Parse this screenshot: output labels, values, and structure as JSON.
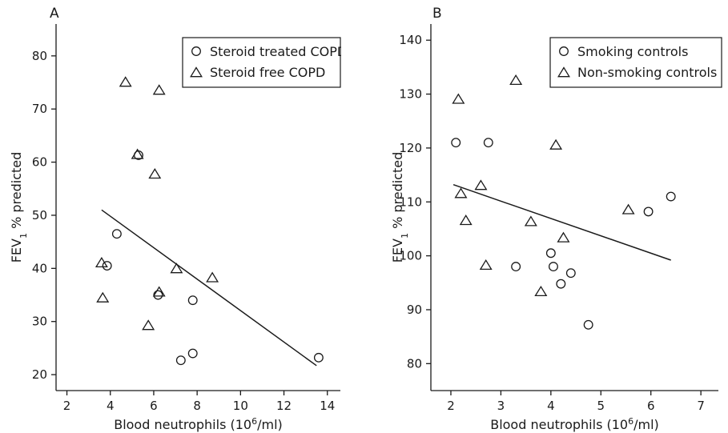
{
  "chart_data": [
    {
      "type": "scatter",
      "panel_label": "A",
      "xlabel": "Blood neutrophils (10",
      "xlabel_sup": "6",
      "xlabel_suffix": "/ml)",
      "ylabel": "FEV",
      "ylabel_sub": "1",
      "ylabel_suffix": " % predicted",
      "xlim": [
        1.5,
        14.6
      ],
      "ylim": [
        17,
        86
      ],
      "xticks": [
        2,
        4,
        6,
        8,
        10,
        12,
        14
      ],
      "yticks": [
        20,
        30,
        40,
        50,
        60,
        70,
        80
      ],
      "grid": false,
      "legend_position": "top-right",
      "series": [
        {
          "name": "Steroid treated COPD",
          "marker": "circle",
          "points": [
            {
              "x": 4.3,
              "y": 46.5
            },
            {
              "x": 3.85,
              "y": 40.5
            },
            {
              "x": 5.3,
              "y": 61.3
            },
            {
              "x": 6.2,
              "y": 35
            },
            {
              "x": 7.8,
              "y": 34
            },
            {
              "x": 7.8,
              "y": 24
            },
            {
              "x": 7.25,
              "y": 22.7
            },
            {
              "x": 13.6,
              "y": 23.2
            }
          ]
        },
        {
          "name": "Steroid free COPD",
          "marker": "triangle",
          "points": [
            {
              "x": 4.7,
              "y": 75
            },
            {
              "x": 6.25,
              "y": 73.5
            },
            {
              "x": 5.25,
              "y": 61.4
            },
            {
              "x": 6.05,
              "y": 57.7
            },
            {
              "x": 3.6,
              "y": 41
            },
            {
              "x": 3.65,
              "y": 34.4
            },
            {
              "x": 5.75,
              "y": 29.2
            },
            {
              "x": 6.25,
              "y": 35.5
            },
            {
              "x": 7.05,
              "y": 39.9
            },
            {
              "x": 8.7,
              "y": 38.2
            }
          ]
        }
      ],
      "regression_line": [
        {
          "x": 3.6,
          "y": 51
        },
        {
          "x": 13.5,
          "y": 21.7
        }
      ]
    },
    {
      "type": "scatter",
      "panel_label": "B",
      "xlabel": "Blood neutrophils (10",
      "xlabel_sup": "6",
      "xlabel_suffix": "/ml)",
      "ylabel": "FEV",
      "ylabel_sub": "1",
      "ylabel_suffix": " % predicted",
      "xlim": [
        1.6,
        7.35
      ],
      "ylim": [
        75,
        143
      ],
      "xticks": [
        2,
        3,
        4,
        5,
        6,
        7
      ],
      "yticks": [
        80,
        90,
        100,
        110,
        120,
        130,
        140
      ],
      "grid": false,
      "legend_position": "top-right",
      "series": [
        {
          "name": "Smoking controls",
          "marker": "circle",
          "points": [
            {
              "x": 2.1,
              "y": 121
            },
            {
              "x": 2.75,
              "y": 121
            },
            {
              "x": 3.3,
              "y": 98
            },
            {
              "x": 4.0,
              "y": 100.5
            },
            {
              "x": 4.05,
              "y": 98
            },
            {
              "x": 4.2,
              "y": 94.8
            },
            {
              "x": 4.4,
              "y": 96.8
            },
            {
              "x": 4.75,
              "y": 87.2
            },
            {
              "x": 5.95,
              "y": 108.2
            },
            {
              "x": 6.4,
              "y": 111
            }
          ]
        },
        {
          "name": "Non-smoking controls",
          "marker": "triangle",
          "points": [
            {
              "x": 2.15,
              "y": 129
            },
            {
              "x": 2.2,
              "y": 111.5
            },
            {
              "x": 2.3,
              "y": 106.5
            },
            {
              "x": 2.6,
              "y": 113
            },
            {
              "x": 3.3,
              "y": 132.5
            },
            {
              "x": 4.1,
              "y": 120.5
            },
            {
              "x": 3.6,
              "y": 106.3
            },
            {
              "x": 4.25,
              "y": 103.3
            },
            {
              "x": 2.7,
              "y": 98.2
            },
            {
              "x": 3.8,
              "y": 93.3
            },
            {
              "x": 5.55,
              "y": 108.5
            }
          ]
        }
      ],
      "regression_line": [
        {
          "x": 2.05,
          "y": 113.2
        },
        {
          "x": 6.4,
          "y": 99.2
        }
      ]
    }
  ]
}
